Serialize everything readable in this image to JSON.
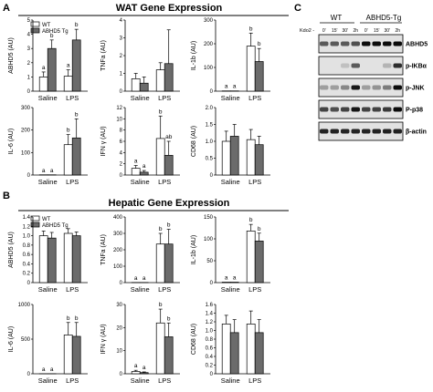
{
  "figure": {
    "panel_labels": {
      "a": "A",
      "b": "B",
      "c": "C"
    },
    "section_titles": {
      "wat": "WAT Gene Expression",
      "hepatic": "Hepatic Gene Expression"
    },
    "legend_wat": {
      "wt": "WT",
      "tg": "ABHD5 Tg"
    },
    "legend_hepatic": {
      "wt": "WT",
      "tg": "ABHD5 Tg"
    },
    "colors": {
      "wt": "#ffffff",
      "tg": "#6b6b6b",
      "axis": "#000000"
    },
    "western_blot": {
      "groups": [
        "WT",
        "ABHD5-Tg"
      ],
      "kdo2_label": "Kdo2 -",
      "timepoints": [
        "0'",
        "15'",
        "30'",
        "2h",
        "0'",
        "15'",
        "30'",
        "2h"
      ],
      "bands": [
        "ABHD5",
        "p-IKBα",
        "p-JNK",
        "P-p38",
        "β-actin"
      ]
    }
  },
  "chart_data": [
    {
      "id": "wat_abhd5",
      "type": "bar",
      "categories": [
        "Saline",
        "LPS"
      ],
      "ylabel": "ABHD5 (AU)",
      "ylim": [
        0,
        5
      ],
      "yticks": [
        0,
        1,
        2,
        3,
        4,
        5
      ],
      "tick_labels": [
        "0",
        "1",
        "2",
        "3",
        "4",
        "5"
      ],
      "series": [
        {
          "name": "WT",
          "values": [
            1.0,
            1.05
          ],
          "errors": [
            0.35,
            0.45
          ]
        },
        {
          "name": "ABHD5 Tg",
          "values": [
            3.0,
            3.6
          ],
          "errors": [
            0.6,
            0.75
          ]
        }
      ],
      "annotations": [
        "a",
        "b",
        "a",
        "b"
      ]
    },
    {
      "id": "wat_tnfa",
      "type": "bar",
      "categories": [
        "Saline",
        "LPS"
      ],
      "ylabel": "TNFa (AU)",
      "ylim": [
        0,
        4
      ],
      "yticks": [
        0,
        1,
        2,
        3,
        4
      ],
      "tick_labels": [
        "0",
        "1",
        "2",
        "3",
        "4"
      ],
      "series": [
        {
          "name": "WT",
          "values": [
            0.7,
            1.2
          ],
          "errors": [
            0.3,
            0.4
          ]
        },
        {
          "name": "ABHD5 Tg",
          "values": [
            0.45,
            1.55
          ],
          "errors": [
            0.35,
            1.9
          ]
        }
      ],
      "annotations": []
    },
    {
      "id": "wat_il1b",
      "type": "bar",
      "categories": [
        "Saline",
        "LPS"
      ],
      "ylabel": "IL-1b (AU)",
      "ylim": [
        0,
        300
      ],
      "yticks": [
        0,
        100,
        200,
        300
      ],
      "tick_labels": [
        "0",
        "100",
        "200",
        "300"
      ],
      "series": [
        {
          "name": "WT",
          "values": [
            1,
            190
          ],
          "errors": [
            0,
            55
          ]
        },
        {
          "name": "ABHD5 Tg",
          "values": [
            1,
            125
          ],
          "errors": [
            0,
            55
          ]
        }
      ],
      "annotations": [
        "a",
        "a",
        "b",
        "b"
      ]
    },
    {
      "id": "wat_il6",
      "type": "bar",
      "categories": [
        "Saline",
        "LPS"
      ],
      "ylabel": "IL-6 (AU)",
      "ylim": [
        0,
        300
      ],
      "yticks": [
        0,
        100,
        200,
        300
      ],
      "tick_labels": [
        "0",
        "100",
        "200",
        "300"
      ],
      "series": [
        {
          "name": "WT",
          "values": [
            1,
            135
          ],
          "errors": [
            0,
            45
          ]
        },
        {
          "name": "ABHD5 Tg",
          "values": [
            1,
            165
          ],
          "errors": [
            0,
            85
          ]
        }
      ],
      "annotations": [
        "a",
        "a",
        "b",
        "b"
      ]
    },
    {
      "id": "wat_ifng",
      "type": "bar",
      "categories": [
        "Saline",
        "LPS"
      ],
      "ylabel": "IFN γ (AU)",
      "ylim": [
        0,
        12
      ],
      "yticks": [
        0,
        2,
        4,
        6,
        8,
        10,
        12
      ],
      "tick_labels": [
        "0",
        "2",
        "4",
        "6",
        "8",
        "10",
        "12"
      ],
      "series": [
        {
          "name": "WT",
          "values": [
            1.2,
            6.5
          ],
          "errors": [
            0.5,
            4.0
          ]
        },
        {
          "name": "ABHD5 Tg",
          "values": [
            0.5,
            3.5
          ],
          "errors": [
            0.3,
            2.5
          ]
        }
      ],
      "annotations": [
        "a",
        "a",
        "b",
        "ab"
      ]
    },
    {
      "id": "wat_cd68",
      "type": "bar",
      "categories": [
        "Saline",
        "LPS"
      ],
      "ylabel": "CD68 (AU)",
      "ylim": [
        0,
        2.0
      ],
      "yticks": [
        0,
        0.5,
        1.0,
        1.5,
        2.0
      ],
      "tick_labels": [
        "0",
        "0.5",
        "1.0",
        "1.5",
        "2.0"
      ],
      "series": [
        {
          "name": "WT",
          "values": [
            1.0,
            1.05
          ],
          "errors": [
            0.3,
            0.3
          ]
        },
        {
          "name": "ABHD5 Tg",
          "values": [
            1.15,
            0.9
          ],
          "errors": [
            0.35,
            0.25
          ]
        }
      ],
      "annotations": []
    },
    {
      "id": "hep_abhd5",
      "type": "bar",
      "categories": [
        "Saline",
        "LPS"
      ],
      "ylabel": "ABHD5 (AU)",
      "ylim": [
        0,
        1.4
      ],
      "yticks": [
        0,
        0.2,
        0.4,
        0.6,
        0.8,
        1.0,
        1.2,
        1.4
      ],
      "tick_labels": [
        "0",
        "0.2",
        "0.4",
        "0.6",
        "0.8",
        "1.0",
        "1.2",
        "1.4"
      ],
      "series": [
        {
          "name": "WT",
          "values": [
            1.0,
            1.05
          ],
          "errors": [
            0.1,
            0.1
          ]
        },
        {
          "name": "ABHD5 Tg",
          "values": [
            0.95,
            1.0
          ],
          "errors": [
            0.12,
            0.08
          ]
        }
      ],
      "annotations": []
    },
    {
      "id": "hep_tnfa",
      "type": "bar",
      "categories": [
        "Saline",
        "LPS"
      ],
      "ylabel": "TNFa (AU)",
      "ylim": [
        0,
        400
      ],
      "yticks": [
        0,
        100,
        200,
        300,
        400
      ],
      "tick_labels": [
        "0",
        "100",
        "200",
        "300",
        "400"
      ],
      "series": [
        {
          "name": "WT",
          "values": [
            1,
            235
          ],
          "errors": [
            0,
            65
          ]
        },
        {
          "name": "ABHD5 Tg",
          "values": [
            1,
            235
          ],
          "errors": [
            0,
            90
          ]
        }
      ],
      "annotations": [
        "a",
        "a",
        "b",
        "b"
      ]
    },
    {
      "id": "hep_il1b",
      "type": "bar",
      "categories": [
        "Saline",
        "LPS"
      ],
      "ylabel": "IL-1b (AU)",
      "ylim": [
        0,
        150
      ],
      "yticks": [
        0,
        50,
        100,
        150
      ],
      "tick_labels": [
        "0",
        "50",
        "100",
        "150"
      ],
      "series": [
        {
          "name": "WT",
          "values": [
            1,
            118
          ],
          "errors": [
            0,
            15
          ]
        },
        {
          "name": "ABHD5 Tg",
          "values": [
            1,
            95
          ],
          "errors": [
            0,
            18
          ]
        }
      ],
      "annotations": [
        "a",
        "a",
        "b",
        "b"
      ]
    },
    {
      "id": "hep_il6",
      "type": "bar",
      "categories": [
        "Saline",
        "LPS"
      ],
      "ylabel": "IL-6 (AU)",
      "ylim": [
        0,
        1000
      ],
      "yticks": [
        0,
        500,
        1000
      ],
      "tick_labels": [
        "0",
        "500",
        "1000"
      ],
      "series": [
        {
          "name": "WT",
          "values": [
            1,
            560
          ],
          "errors": [
            0,
            180
          ]
        },
        {
          "name": "ABHD5 Tg",
          "values": [
            1,
            540
          ],
          "errors": [
            0,
            200
          ]
        }
      ],
      "annotations": [
        "a",
        "a",
        "b",
        "b"
      ]
    },
    {
      "id": "hep_ifng",
      "type": "bar",
      "categories": [
        "Saline",
        "LPS"
      ],
      "ylabel": "IFN γ (AU)",
      "ylim": [
        0,
        30
      ],
      "yticks": [
        0,
        10,
        20,
        30
      ],
      "tick_labels": [
        "0",
        "10",
        "20",
        "30"
      ],
      "series": [
        {
          "name": "WT",
          "values": [
            1,
            22
          ],
          "errors": [
            0.5,
            6
          ]
        },
        {
          "name": "ABHD5 Tg",
          "values": [
            0.5,
            16
          ],
          "errors": [
            0.3,
            6
          ]
        }
      ],
      "annotations": [
        "a",
        "a",
        "b",
        "b"
      ]
    },
    {
      "id": "hep_cd68",
      "type": "bar",
      "categories": [
        "Saline",
        "LPS"
      ],
      "ylabel": "CD68 (AU)",
      "ylim": [
        0,
        1.6
      ],
      "yticks": [
        0,
        0.2,
        0.4,
        0.6,
        0.8,
        1.0,
        1.2,
        1.4,
        1.6
      ],
      "tick_labels": [
        "0",
        "0.2",
        "0.4",
        "0.6",
        "0.8",
        "1.0",
        "1.2",
        "1.4",
        "1.6"
      ],
      "series": [
        {
          "name": "WT",
          "values": [
            1.15,
            1.15
          ],
          "errors": [
            0.2,
            0.3
          ]
        },
        {
          "name": "ABHD5 Tg",
          "values": [
            0.95,
            0.95
          ],
          "errors": [
            0.3,
            0.3
          ]
        }
      ],
      "annotations": []
    }
  ]
}
